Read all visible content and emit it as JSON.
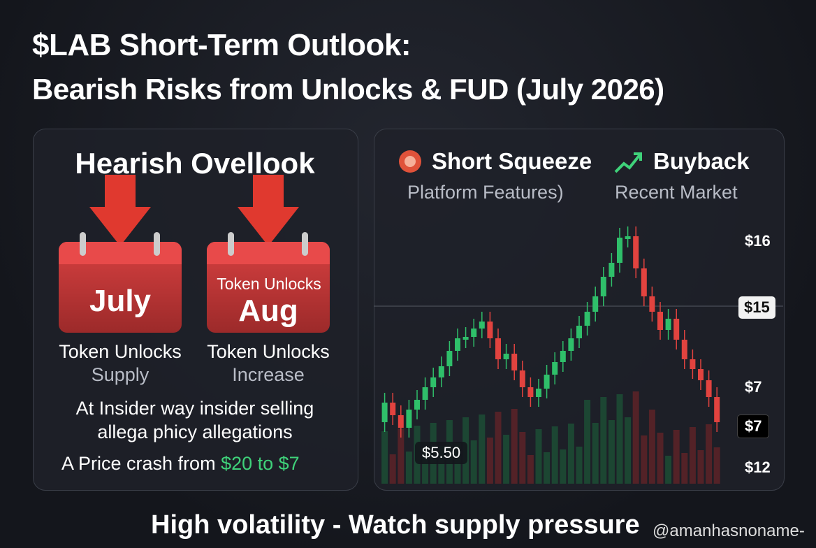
{
  "title": {
    "line1": "$LAB Short-Term Outlook:",
    "line2": "Bearish Risks from Unlocks & FUD (July 2026)"
  },
  "left_panel": {
    "heading": "Hearish Ovellook",
    "calendars": [
      {
        "month": "July",
        "label": "Token Unlocks",
        "sublabel": "Supply"
      },
      {
        "top": "Token Unlocks",
        "month": "Aug",
        "label": "Token Unlocks",
        "sublabel": "Increase"
      }
    ],
    "insider": [
      "At Insider way insider selling",
      "allega phicy allegations"
    ],
    "crash": {
      "prefix": "A Price crash from",
      "highlight": "$20 to $7"
    }
  },
  "right_panel": {
    "badges": [
      {
        "title": "Short Squeeze",
        "subtitle": "Platform Features)"
      },
      {
        "title": "Buyback",
        "subtitle": "Recent Market"
      }
    ],
    "price_labels": [
      "$16",
      "$15",
      "$7",
      "$7",
      "$12"
    ],
    "callout": "$5.50"
  },
  "footer": "High volatility - Watch supply pressure",
  "watermark": "@amanhasnoname-"
}
